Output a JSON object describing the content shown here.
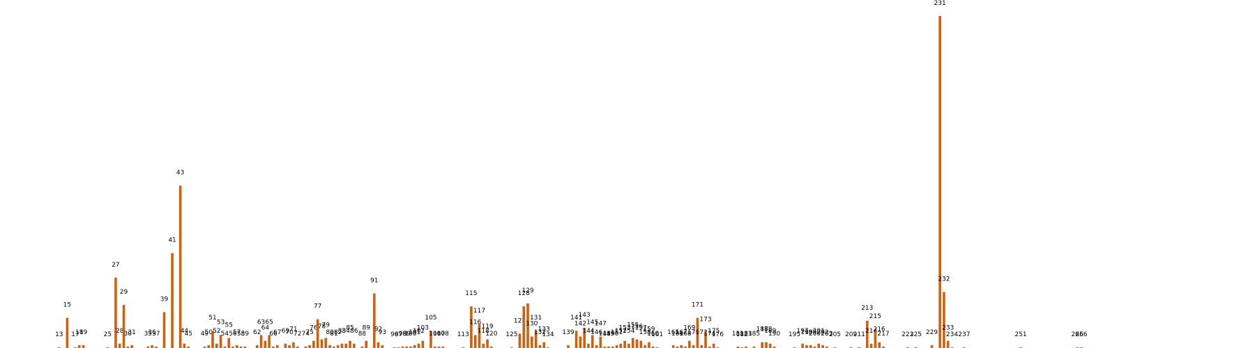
{
  "chart_data": {
    "type": "bar",
    "title": "",
    "xlabel": "",
    "ylabel": "",
    "color": "#d35f0a",
    "ylim": [
      0,
      236
    ],
    "grid": false,
    "legend": "none",
    "bars": [
      {
        "label": "13",
        "value": 0.5
      },
      {
        "label": "15",
        "value": 21
      },
      {
        "label": "17",
        "value": 0.5
      },
      {
        "label": "18",
        "value": 2
      },
      {
        "label": "19",
        "value": 2
      },
      {
        "label": "25",
        "value": 0.5
      },
      {
        "label": "27",
        "value": 49
      },
      {
        "label": "28",
        "value": 3
      },
      {
        "label": "29",
        "value": 30
      },
      {
        "label": "30",
        "value": 1
      },
      {
        "label": "31",
        "value": 2
      },
      {
        "label": "35",
        "value": 1
      },
      {
        "label": "36",
        "value": 2
      },
      {
        "label": "37",
        "value": 1
      },
      {
        "label": "39",
        "value": 25
      },
      {
        "label": "41",
        "value": 66
      },
      {
        "label": "43",
        "value": 113
      },
      {
        "label": "44",
        "value": 3
      },
      {
        "label": "45",
        "value": 1
      },
      {
        "label": "49",
        "value": 1
      },
      {
        "label": "50",
        "value": 2
      },
      {
        "label": "51",
        "value": 12
      },
      {
        "label": "52",
        "value": 3
      },
      {
        "label": "53",
        "value": 9
      },
      {
        "label": "54",
        "value": 1
      },
      {
        "label": "55",
        "value": 7
      },
      {
        "label": "56",
        "value": 1
      },
      {
        "label": "57",
        "value": 2
      },
      {
        "label": "58",
        "value": 1
      },
      {
        "label": "59",
        "value": 1
      },
      {
        "label": "62",
        "value": 2
      },
      {
        "label": "63",
        "value": 9
      },
      {
        "label": "64",
        "value": 5
      },
      {
        "label": "65",
        "value": 9
      },
      {
        "label": "66",
        "value": 1
      },
      {
        "label": "67",
        "value": 2
      },
      {
        "label": "69",
        "value": 3
      },
      {
        "label": "70",
        "value": 2
      },
      {
        "label": "71",
        "value": 4
      },
      {
        "label": "72",
        "value": 1
      },
      {
        "label": "74",
        "value": 1
      },
      {
        "label": "75",
        "value": 2
      },
      {
        "label": "76",
        "value": 5
      },
      {
        "label": "77",
        "value": 20
      },
      {
        "label": "78",
        "value": 6
      },
      {
        "label": "79",
        "value": 7
      },
      {
        "label": "80",
        "value": 2
      },
      {
        "label": "81",
        "value": 1
      },
      {
        "label": "82",
        "value": 2
      },
      {
        "label": "83",
        "value": 3
      },
      {
        "label": "84",
        "value": 3
      },
      {
        "label": "85",
        "value": 5
      },
      {
        "label": "86",
        "value": 3
      },
      {
        "label": "88",
        "value": 1
      },
      {
        "label": "89",
        "value": 5
      },
      {
        "label": "91",
        "value": 38
      },
      {
        "label": "92",
        "value": 4
      },
      {
        "label": "93",
        "value": 2
      },
      {
        "label": "96",
        "value": 0.5
      },
      {
        "label": "97",
        "value": 0.5
      },
      {
        "label": "98",
        "value": 1
      },
      {
        "label": "99",
        "value": 1
      },
      {
        "label": "100",
        "value": 1
      },
      {
        "label": "101",
        "value": 2
      },
      {
        "label": "102",
        "value": 3
      },
      {
        "label": "103",
        "value": 5
      },
      {
        "label": "105",
        "value": 12
      },
      {
        "label": "106",
        "value": 1
      },
      {
        "label": "107",
        "value": 1
      },
      {
        "label": "108",
        "value": 1
      },
      {
        "label": "113",
        "value": 0.5
      },
      {
        "label": "115",
        "value": 29
      },
      {
        "label": "116",
        "value": 9
      },
      {
        "label": "117",
        "value": 17
      },
      {
        "label": "118",
        "value": 3
      },
      {
        "label": "119",
        "value": 6
      },
      {
        "label": "120",
        "value": 1
      },
      {
        "label": "125",
        "value": 0.5
      },
      {
        "label": "127",
        "value": 10
      },
      {
        "label": "128",
        "value": 29
      },
      {
        "label": "129",
        "value": 31
      },
      {
        "label": "130",
        "value": 8
      },
      {
        "label": "131",
        "value": 12
      },
      {
        "label": "132",
        "value": 2
      },
      {
        "label": "133",
        "value": 4
      },
      {
        "label": "134",
        "value": 0.5
      },
      {
        "label": "139",
        "value": 2
      },
      {
        "label": "141",
        "value": 12
      },
      {
        "label": "142",
        "value": 8
      },
      {
        "label": "143",
        "value": 14
      },
      {
        "label": "144",
        "value": 3
      },
      {
        "label": "145",
        "value": 9
      },
      {
        "label": "146",
        "value": 2
      },
      {
        "label": "147",
        "value": 8
      },
      {
        "label": "148",
        "value": 1
      },
      {
        "label": "149",
        "value": 1
      },
      {
        "label": "150",
        "value": 1
      },
      {
        "label": "151",
        "value": 2
      },
      {
        "label": "152",
        "value": 3
      },
      {
        "label": "153",
        "value": 5
      },
      {
        "label": "154",
        "value": 3
      },
      {
        "label": "155",
        "value": 7
      },
      {
        "label": "156",
        "value": 6
      },
      {
        "label": "157",
        "value": 5
      },
      {
        "label": "158",
        "value": 2
      },
      {
        "label": "159",
        "value": 4
      },
      {
        "label": "160",
        "value": 1
      },
      {
        "label": "161",
        "value": 0.5
      },
      {
        "label": "165",
        "value": 2
      },
      {
        "label": "166",
        "value": 1
      },
      {
        "label": "167",
        "value": 2
      },
      {
        "label": "168",
        "value": 1
      },
      {
        "label": "169",
        "value": 5
      },
      {
        "label": "170",
        "value": 2
      },
      {
        "label": "171",
        "value": 21
      },
      {
        "label": "172",
        "value": 2
      },
      {
        "label": "173",
        "value": 11
      },
      {
        "label": "174",
        "value": 1
      },
      {
        "label": "175",
        "value": 3
      },
      {
        "label": "176",
        "value": 0.5
      },
      {
        "label": "181",
        "value": 1
      },
      {
        "label": "182",
        "value": 0.5
      },
      {
        "label": "183",
        "value": 1
      },
      {
        "label": "185",
        "value": 1
      },
      {
        "label": "187",
        "value": 4
      },
      {
        "label": "188",
        "value": 4
      },
      {
        "label": "189",
        "value": 3
      },
      {
        "label": "190",
        "value": 1
      },
      {
        "label": "195",
        "value": 0.5
      },
      {
        "label": "197",
        "value": 3
      },
      {
        "label": "198",
        "value": 2
      },
      {
        "label": "199",
        "value": 2
      },
      {
        "label": "200",
        "value": 1
      },
      {
        "label": "201",
        "value": 3
      },
      {
        "label": "202",
        "value": 2
      },
      {
        "label": "203",
        "value": 1
      },
      {
        "label": "205",
        "value": 0.5
      },
      {
        "label": "209",
        "value": 0.5
      },
      {
        "label": "211",
        "value": 0.5
      },
      {
        "label": "213",
        "value": 19
      },
      {
        "label": "214",
        "value": 3
      },
      {
        "label": "215",
        "value": 13
      },
      {
        "label": "216",
        "value": 4
      },
      {
        "label": "217",
        "value": 1
      },
      {
        "label": "223",
        "value": 0.5
      },
      {
        "label": "225",
        "value": 0.5
      },
      {
        "label": "229",
        "value": 2
      },
      {
        "label": "231",
        "value": 231
      },
      {
        "label": "232",
        "value": 39
      },
      {
        "label": "233",
        "value": 5
      },
      {
        "label": "234",
        "value": 0.5
      },
      {
        "label": "237",
        "value": 0.5
      },
      {
        "label": "251",
        "value": 0.5
      },
      {
        "label": "265",
        "value": 0.5
      },
      {
        "label": "266",
        "value": 0.5
      }
    ]
  }
}
